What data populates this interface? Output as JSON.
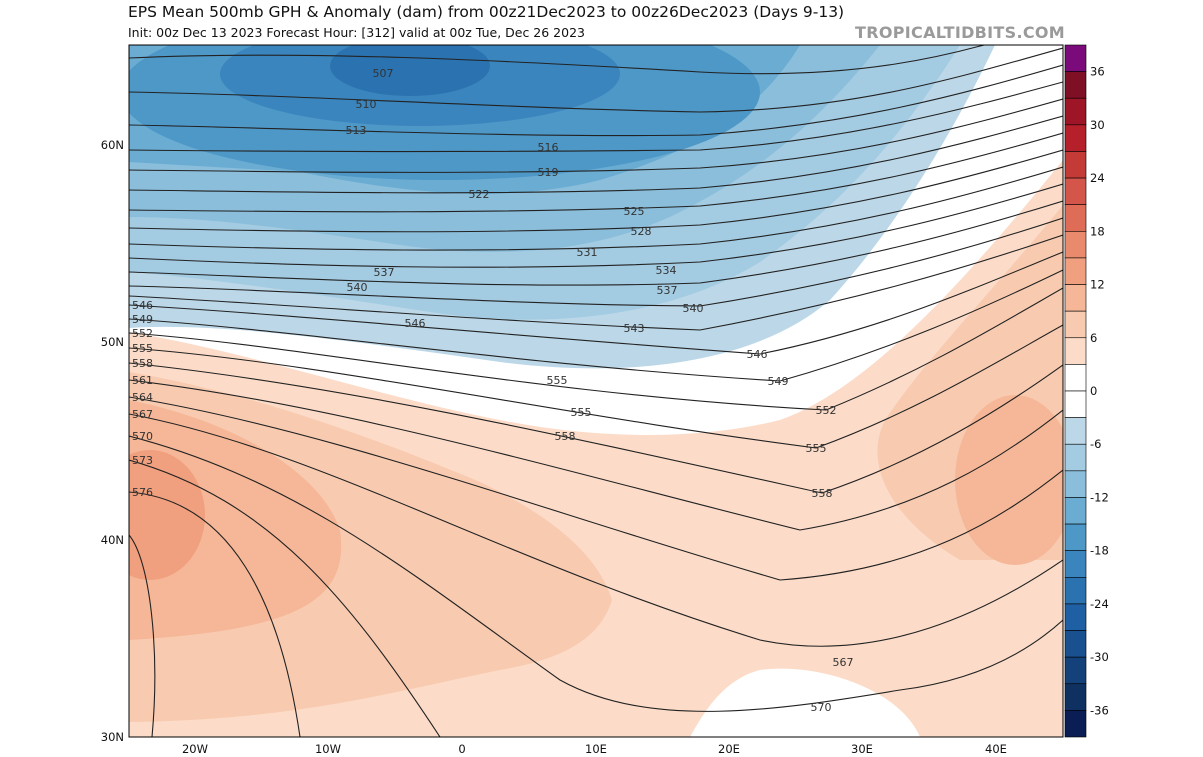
{
  "header": {
    "title": "EPS Mean 500mb GPH & Anomaly (dam) from 00z21Dec2023 to 00z26Dec2023 (Days 9-13)",
    "subtitle": "Init: 00z Dec 13 2023   Forecast Hour: [312]   valid at 00z Tue, Dec 26 2023",
    "brand": "TROPICALTIDBITS.COM"
  },
  "map": {
    "lat_labels": [
      "60N",
      "50N",
      "40N",
      "30N"
    ],
    "lon_labels": [
      "20W",
      "10W",
      "0",
      "10E",
      "20E",
      "30E",
      "40E"
    ],
    "contour_labels": [
      "507",
      "510",
      "513",
      "516",
      "519",
      "522",
      "525",
      "528",
      "531",
      "534",
      "537",
      "540",
      "543",
      "546",
      "549",
      "552",
      "555",
      "558",
      "561",
      "564",
      "567",
      "570",
      "573",
      "576"
    ],
    "inner_labels": [
      "507",
      "510",
      "513",
      "516",
      "519",
      "522",
      "525",
      "528",
      "531",
      "534",
      "537",
      "537",
      "540",
      "540",
      "543",
      "546",
      "546",
      "549",
      "555",
      "552",
      "555",
      "555",
      "558",
      "558",
      "567",
      "570"
    ]
  },
  "colorbar": {
    "labels": [
      "36",
      "30",
      "24",
      "18",
      "12",
      "6",
      "0",
      "-6",
      "-12",
      "-18",
      "-24",
      "-30",
      "-36"
    ],
    "colors": [
      "#7b0a7b",
      "#7e0f24",
      "#9e1528",
      "#b5202b",
      "#c43a36",
      "#d4564a",
      "#df6c56",
      "#e98a6c",
      "#f0a07e",
      "#f5b797",
      "#f8cbb1",
      "#fcdcc8",
      "#ffffff",
      "#ffffff",
      "#bcd8e8",
      "#a3cbe2",
      "#8bbedb",
      "#6aacd2",
      "#4e98c8",
      "#3a85bd",
      "#2b72b0",
      "#1f5fa3",
      "#195090",
      "#144179",
      "#0e3162",
      "#0a1d54"
    ]
  }
}
